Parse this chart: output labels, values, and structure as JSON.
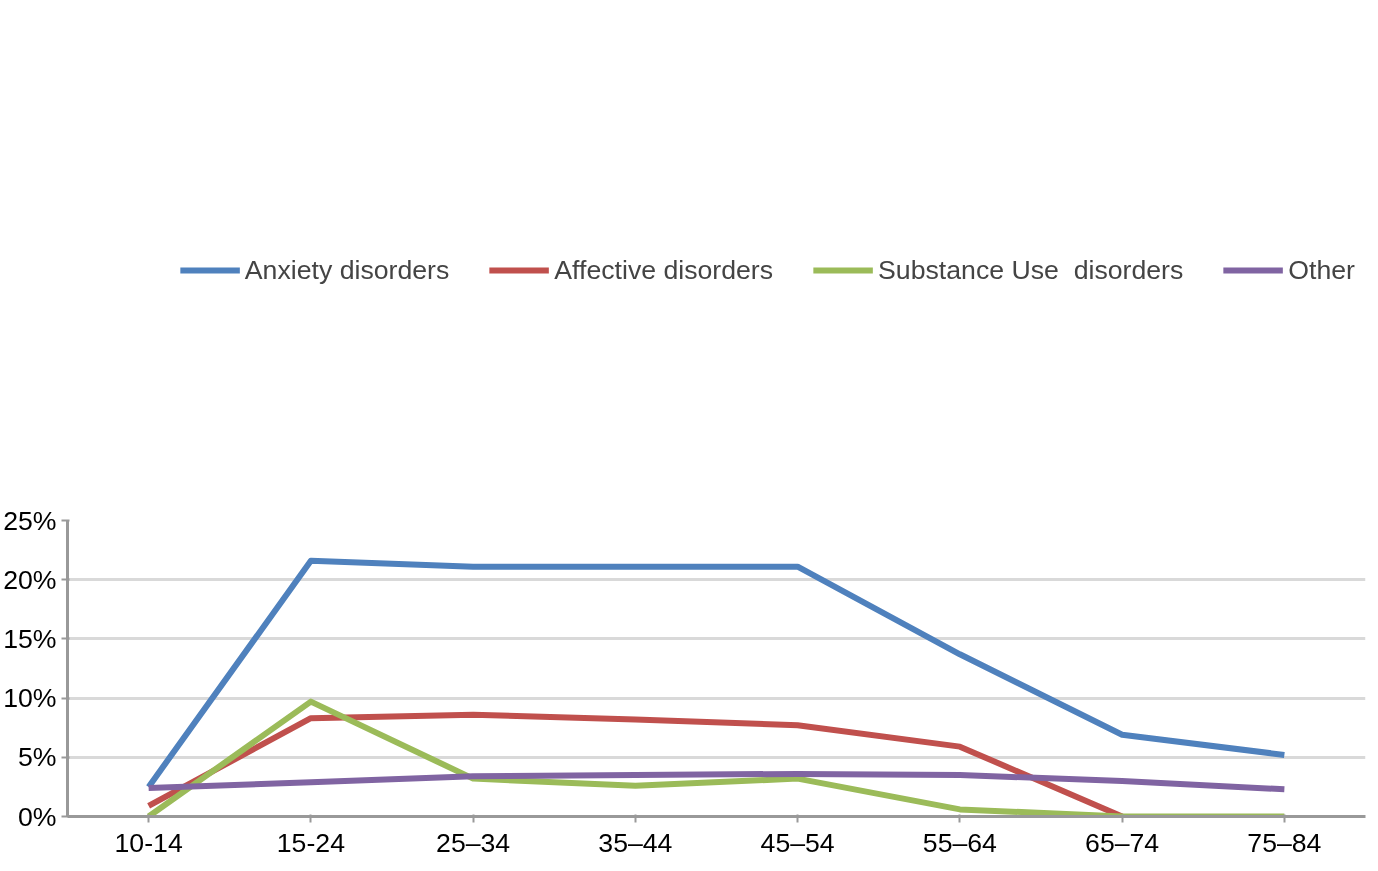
{
  "chart_data": {
    "type": "line",
    "categories": [
      "10-14",
      "15-24",
      "25–34",
      "35–44",
      "45–54",
      "55–64",
      "65–74",
      "75–84"
    ],
    "series": [
      {
        "name": "Anxiety disorders",
        "color": "#4f81bd",
        "values": [
          2.5,
          21.6,
          21.1,
          21.1,
          21.1,
          13.7,
          6.9,
          5.2
        ]
      },
      {
        "name": "Affective disorders",
        "color": "#c0504d",
        "values": [
          0.9,
          8.3,
          8.6,
          8.2,
          7.7,
          5.9,
          0,
          null
        ]
      },
      {
        "name": "Substance Use  disorders",
        "color": "#9bbb59",
        "values": [
          0,
          9.7,
          3.2,
          2.6,
          3.2,
          0.6,
          0,
          0
        ]
      },
      {
        "name": "Other",
        "color": "#8064a2",
        "values": [
          2.4,
          2.9,
          3.4,
          3.5,
          3.6,
          3.5,
          3.0,
          2.3
        ]
      }
    ],
    "ylim": [
      0,
      25
    ],
    "yticks": [
      {
        "value": 0,
        "label": "0%"
      },
      {
        "value": 5,
        "label": "5%"
      },
      {
        "value": 10,
        "label": "10%"
      },
      {
        "value": 15,
        "label": "15%"
      },
      {
        "value": 20,
        "label": "20%"
      },
      {
        "value": 25,
        "label": "25%"
      }
    ],
    "grid": "y",
    "legend": "top",
    "marker": "none",
    "line_style": "solid"
  }
}
